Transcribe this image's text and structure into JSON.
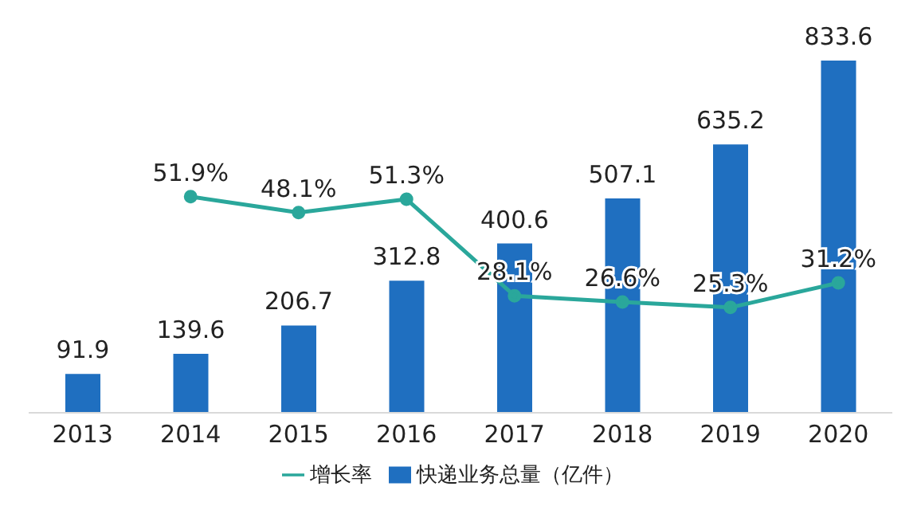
{
  "chart_data": {
    "type": "bar",
    "categories": [
      "2013",
      "2014",
      "2015",
      "2016",
      "2017",
      "2018",
      "2019",
      "2020"
    ],
    "legend": "bottom",
    "marker": "circle",
    "tick_labels": "x",
    "series": [
      {
        "name": "快递业务总量（亿件）",
        "color": "#1f6fc0",
        "values": [
          91.9,
          139.6,
          206.7,
          312.8,
          400.6,
          507.1,
          635.2,
          833.6
        ],
        "value_labels": [
          "91.9",
          "139.6",
          "206.7",
          "312.8",
          "400.6",
          "507.1",
          "635.2",
          "833.6"
        ]
      },
      {
        "name": "增长率",
        "type": "line",
        "axis": "y2",
        "color": "#2aa79b",
        "values": [
          null,
          51.9,
          48.1,
          51.3,
          28.1,
          26.6,
          25.3,
          31.2
        ],
        "value_labels": [
          null,
          "51.9%",
          "48.1%",
          "51.3%",
          "28.1%",
          "26.6%",
          "25.3%",
          "31.2%"
        ]
      }
    ]
  }
}
